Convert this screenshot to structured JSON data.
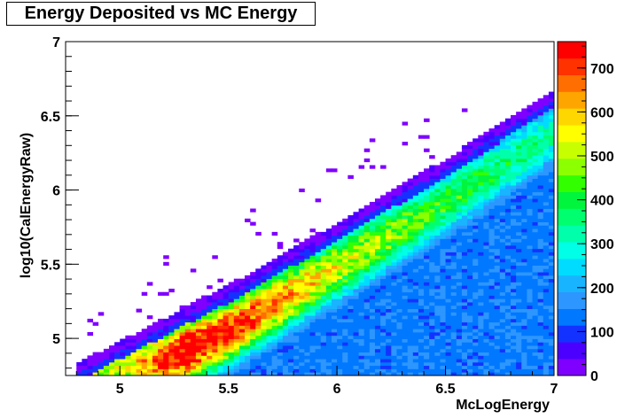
{
  "chart_data": {
    "type": "heatmap",
    "title": "Energy Deposited vs MC Energy",
    "xlabel": "McLogEnergy",
    "ylabel": "log10(CalEnergyRaw)",
    "xlim": [
      4.75,
      7.0
    ],
    "ylim": [
      4.75,
      7.0
    ],
    "x_ticks": [
      {
        "value": 5,
        "label": "5"
      },
      {
        "value": 5.5,
        "label": "5.5"
      },
      {
        "value": 6,
        "label": "6"
      },
      {
        "value": 6.5,
        "label": "6.5"
      },
      {
        "value": 7,
        "label": "7"
      }
    ],
    "y_ticks": [
      {
        "value": 5,
        "label": "5"
      },
      {
        "value": 5.5,
        "label": "5.5"
      },
      {
        "value": 6,
        "label": "6"
      },
      {
        "value": 6.5,
        "label": "6.5"
      },
      {
        "value": 7,
        "label": "7"
      }
    ],
    "colorbar": {
      "zlim": [
        0,
        760
      ],
      "ticks": [
        {
          "value": 0,
          "label": "0"
        },
        {
          "value": 100,
          "label": "100"
        },
        {
          "value": 200,
          "label": "200"
        },
        {
          "value": 300,
          "label": "300"
        },
        {
          "value": 400,
          "label": "400"
        },
        {
          "value": 500,
          "label": "500"
        },
        {
          "value": 600,
          "label": "600"
        },
        {
          "value": 700,
          "label": "700"
        }
      ],
      "colors": [
        "#7f00ff",
        "#4b00ff",
        "#1432ff",
        "#0078ff",
        "#2d96ff",
        "#19b4ff",
        "#00dcff",
        "#00ffe6",
        "#00ffaa",
        "#00ff6e",
        "#00f53c",
        "#32ff00",
        "#8cff00",
        "#c8ff00",
        "#ffff00",
        "#ffd700",
        "#ffa500",
        "#ff6e00",
        "#ff3200",
        "#ff0000"
      ]
    },
    "band_ridge": [
      {
        "x": 4.8,
        "y": 4.76
      },
      {
        "x": 5.2,
        "y": 4.84
      },
      {
        "x": 5.5,
        "y": 5.05
      },
      {
        "x": 6.0,
        "y": 5.48
      },
      {
        "x": 6.5,
        "y": 5.92
      },
      {
        "x": 7.0,
        "y": 6.38
      }
    ],
    "band_upper_edge": [
      {
        "x": 4.8,
        "y": 4.8
      },
      {
        "x": 5.0,
        "y": 4.95
      },
      {
        "x": 5.5,
        "y": 5.33
      },
      {
        "x": 6.0,
        "y": 5.75
      },
      {
        "x": 6.5,
        "y": 6.18
      },
      {
        "x": 7.0,
        "y": 6.65
      }
    ],
    "band_peak_counts": [
      {
        "x": 5.0,
        "z": 420
      },
      {
        "x": 5.3,
        "z": 740
      },
      {
        "x": 5.6,
        "z": 620
      },
      {
        "x": 6.0,
        "z": 440
      },
      {
        "x": 6.5,
        "z": 330
      },
      {
        "x": 7.0,
        "z": 240
      }
    ]
  }
}
